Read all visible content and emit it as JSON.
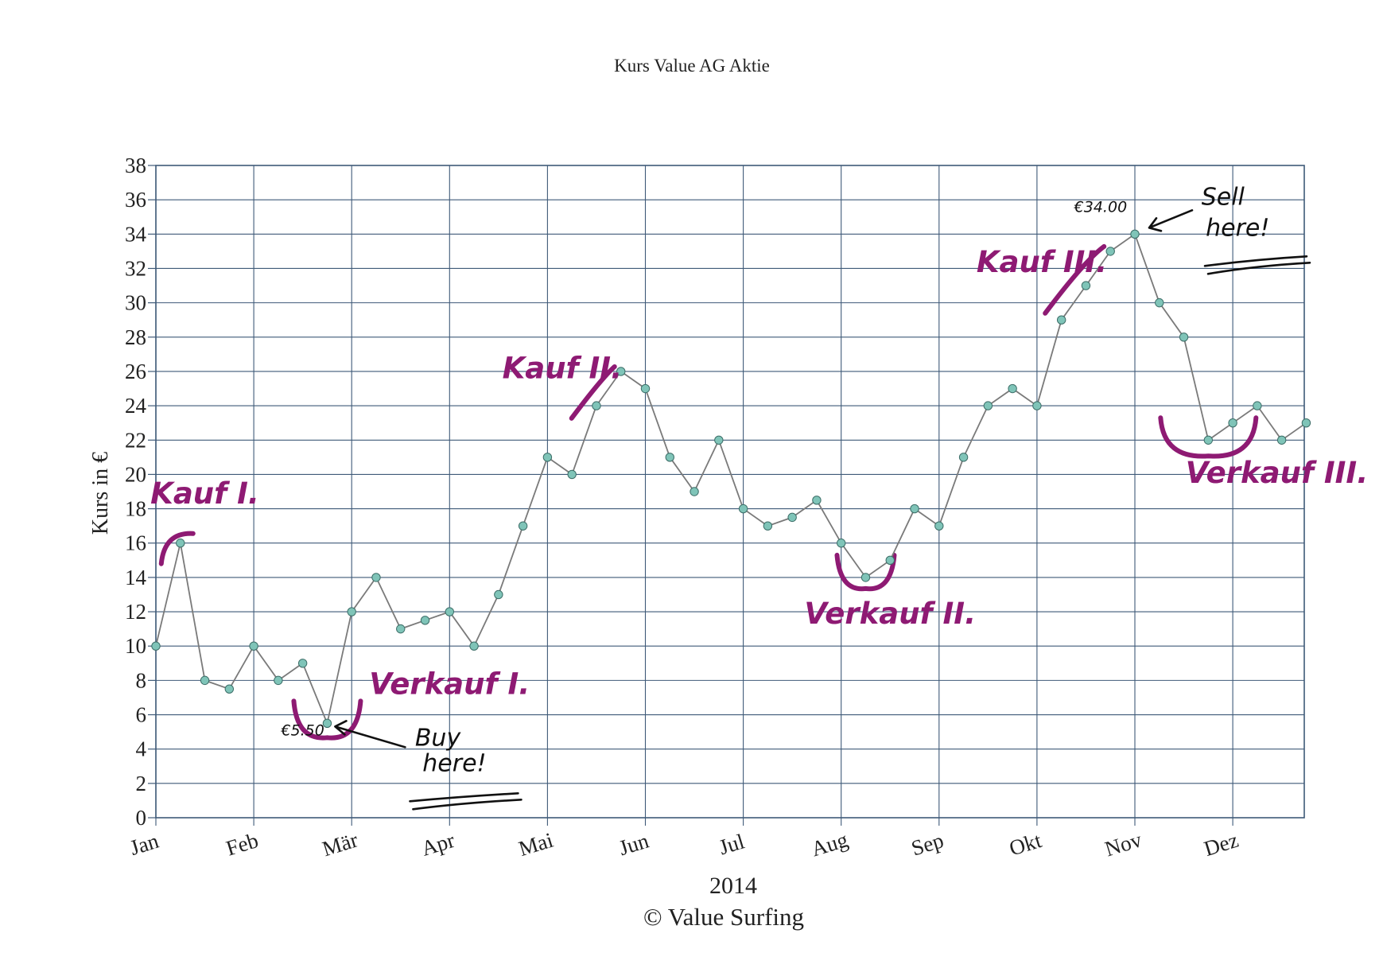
{
  "chart_data": {
    "type": "line",
    "title": "Kurs Value AG Aktie",
    "ylabel": "Kurs in €",
    "xlabel": "2014",
    "credit": "© Value Surfing",
    "ylim": [
      0,
      38
    ],
    "yticks": [
      0,
      2,
      4,
      6,
      8,
      10,
      12,
      14,
      16,
      18,
      20,
      22,
      24,
      26,
      28,
      30,
      32,
      34,
      36,
      38
    ],
    "xlim": [
      0,
      11.75
    ],
    "grid": true,
    "months": [
      "Jan",
      "Feb",
      "Mär",
      "Apr",
      "Mai",
      "Jun",
      "Jul",
      "Aug",
      "Sep",
      "Okt",
      "Nov",
      "Dez"
    ],
    "colors": {
      "line": "#7a7a7a",
      "marker": "#7fc4b8",
      "accent": "#8e1a73",
      "grid": "#3f5a78"
    },
    "series": [
      {
        "x": [
          0,
          0.25,
          0.5,
          0.75,
          1,
          1.25,
          1.5,
          1.75,
          2,
          2.25,
          2.5,
          2.75,
          3,
          3.25,
          3.5,
          3.75,
          4,
          4.25,
          4.5,
          4.75,
          5,
          5.25,
          5.5,
          5.75,
          6,
          6.25,
          6.5,
          6.75,
          7,
          7.25,
          7.5,
          7.75,
          8,
          8.25,
          8.5,
          8.75,
          9,
          9.25,
          9.5,
          9.75,
          10,
          10.25,
          10.5,
          10.75,
          11,
          11.25,
          11.5,
          11.75
        ],
        "values": [
          10,
          16,
          8,
          7.5,
          10,
          8,
          9,
          5.5,
          12,
          14,
          11,
          11.5,
          12,
          10,
          13,
          17,
          21,
          20,
          24,
          26,
          25,
          21,
          19,
          22,
          18,
          17,
          17.5,
          18.5,
          16,
          14,
          15,
          18,
          17,
          21,
          24,
          25,
          24,
          29,
          31,
          33,
          34,
          30,
          28,
          22,
          23,
          24,
          22,
          23
        ]
      }
    ],
    "annotations": [
      {
        "text": "Kauf I.",
        "x": 0.5,
        "y": 18.3,
        "color": "accent"
      },
      {
        "text": "Verkauf I.",
        "x": 3.0,
        "y": 7.2,
        "color": "accent"
      },
      {
        "text": "Kauf II.",
        "x": 4.15,
        "y": 25.6,
        "color": "accent"
      },
      {
        "text": "Verkauf II.",
        "x": 7.5,
        "y": 11.3,
        "color": "accent"
      },
      {
        "text": "Kauf III.",
        "x": 9.05,
        "y": 31.8,
        "color": "accent"
      },
      {
        "text": "Verkauf III.",
        "x": 11.45,
        "y": 19.5,
        "color": "accent"
      },
      {
        "text": "€5.50",
        "x": 1.5,
        "y": 4.8,
        "color": "black"
      },
      {
        "text": "Buy",
        "x": 2.88,
        "y": 4.2,
        "color": "black"
      },
      {
        "text": "here!",
        "x": 3.05,
        "y": 2.7,
        "color": "black"
      },
      {
        "text": "€34.00",
        "x": 9.65,
        "y": 35.3,
        "color": "black"
      },
      {
        "text": "Sell",
        "x": 10.9,
        "y": 35.7,
        "color": "black"
      },
      {
        "text": "here!",
        "x": 11.05,
        "y": 33.9,
        "color": "black"
      }
    ]
  }
}
